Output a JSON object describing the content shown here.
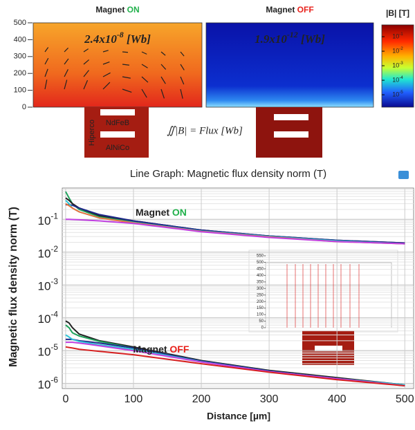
{
  "field_maps": {
    "panels": [
      {
        "title": "Magnet",
        "highlight": "ON",
        "highlight_color": "#22b14c",
        "flux": "2.4x10^-8 [Wb]"
      },
      {
        "title": "Magnet",
        "highlight": "OFF",
        "highlight_color": "#e8211b",
        "flux": "1.9x10^-12 [Wb]"
      }
    ],
    "ylim": [
      0,
      500
    ],
    "yticks": [
      0,
      100,
      200,
      300,
      400,
      500
    ],
    "colorbar_title": "|B| [T]",
    "clim": [
      1.4e-06,
      0.65
    ],
    "colorbar_ticks": [
      {
        "value": 0.1,
        "label": "10^-1"
      },
      {
        "value": 0.01,
        "label": "10^-2"
      },
      {
        "value": 0.001,
        "label": "10^-3"
      },
      {
        "value": 0.0001,
        "label": "10^-4"
      },
      {
        "value": 1e-05,
        "label": "10^-5"
      }
    ],
    "materials": [
      "NdFeB",
      "Hiperco",
      "AlNiCo"
    ],
    "equation": "∬|B| = Flux [Wb]"
  },
  "chart_data": {
    "type": "line",
    "title": "Line Graph: Magnetic flux density norm (T)",
    "x_label": "Distance [µm]",
    "y_label": "Magnetic flux density norm (T)",
    "log_scale": true,
    "grid": true,
    "xlim": [
      -5,
      513
    ],
    "xticks": [
      0,
      100,
      200,
      300,
      400,
      500
    ],
    "ylim": [
      7e-07,
      0.9
    ],
    "yticks": [
      {
        "value": 1e-06,
        "label": "10^-6"
      },
      {
        "value": 1e-05,
        "label": "10^-5"
      },
      {
        "value": 0.0001,
        "label": "10^-4"
      },
      {
        "value": 0.001,
        "label": "10^-3"
      },
      {
        "value": 0.01,
        "label": "10^-2"
      },
      {
        "value": 0.1,
        "label": "10^-1"
      }
    ],
    "x": [
      0,
      5,
      10,
      20,
      50,
      100,
      200,
      300,
      400,
      500
    ],
    "series": [
      {
        "color": "#1fa35c",
        "values": [
          0.7,
          0.45,
          0.3,
          0.2,
          0.12,
          0.085,
          0.045,
          0.03,
          0.022,
          0.018
        ]
      },
      {
        "color": "#222222",
        "values": [
          0.45,
          0.38,
          0.3,
          0.22,
          0.13,
          0.09,
          0.047,
          0.031,
          0.023,
          0.019
        ]
      },
      {
        "color": "#1f2a8a",
        "values": [
          0.28,
          0.28,
          0.27,
          0.22,
          0.14,
          0.09,
          0.047,
          0.031,
          0.023,
          0.019
        ]
      },
      {
        "color": "#30c6d6",
        "values": [
          0.38,
          0.3,
          0.22,
          0.17,
          0.11,
          0.08,
          0.044,
          0.03,
          0.022,
          0.018
        ]
      },
      {
        "color": "#e8743b",
        "values": [
          0.3,
          0.26,
          0.22,
          0.17,
          0.11,
          0.078,
          0.043,
          0.029,
          0.021,
          0.018
        ]
      },
      {
        "color": "#c040e0",
        "values": [
          0.1,
          0.1,
          0.099,
          0.097,
          0.09,
          0.075,
          0.042,
          0.028,
          0.021,
          0.018
        ]
      },
      {
        "color": "#222222",
        "values": [
          8e-05,
          7e-05,
          5e-05,
          3.2e-05,
          2e-05,
          1.3e-05,
          5e-06,
          2.5e-06,
          1.5e-06,
          9e-07
        ]
      },
      {
        "color": "#1fa35c",
        "values": [
          6e-05,
          5e-05,
          3.5e-05,
          2.8e-05,
          1.9e-05,
          1.2e-05,
          4.8e-06,
          2.4e-06,
          1.4e-06,
          9e-07
        ]
      },
      {
        "color": "#1f2a8a",
        "values": [
          2.2e-05,
          2.2e-05,
          2.2e-05,
          2e-05,
          1.7e-05,
          1.2e-05,
          4.8e-06,
          2.4e-06,
          1.4e-06,
          9e-07
        ]
      },
      {
        "color": "#30c6d6",
        "values": [
          3e-05,
          2.6e-05,
          2.2e-05,
          1.9e-05,
          1.5e-05,
          1.1e-05,
          4.6e-06,
          2.3e-06,
          1.4e-06,
          9e-07
        ]
      },
      {
        "color": "#c040e0",
        "values": [
          1.8e-05,
          1.8e-05,
          1.8e-05,
          1.7e-05,
          1.4e-05,
          1e-05,
          4.5e-06,
          2.3e-06,
          1.4e-06,
          8.5e-07
        ]
      },
      {
        "color": "#d62020",
        "values": [
          1.3e-05,
          1.25e-05,
          1.2e-05,
          1.1e-05,
          9.5e-06,
          7.5e-06,
          4e-06,
          2.2e-06,
          1.3e-06,
          8.5e-07
        ]
      }
    ],
    "annotations": [
      {
        "text": "Magnet",
        "highlight": "ON",
        "color": "#22b14c",
        "x": 100,
        "y": 0.2
      },
      {
        "text": "Magnet",
        "highlight": "OFF",
        "color": "#e8211b",
        "x": 100,
        "y": 1.35e-05
      }
    ]
  },
  "inset": {
    "ylim": [
      0,
      550
    ],
    "yticks": [
      0,
      50,
      100,
      150,
      200,
      250,
      300,
      350,
      400,
      450,
      500,
      550
    ]
  }
}
